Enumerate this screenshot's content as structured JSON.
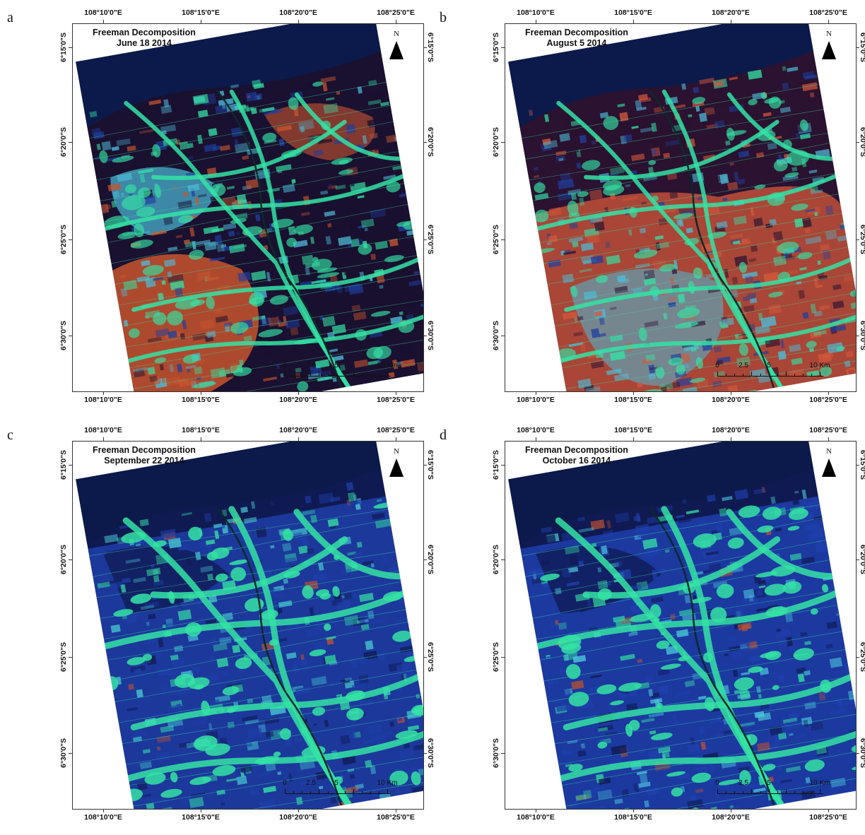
{
  "panels": [
    {
      "letter": "a",
      "title": "Freeman Decomposition",
      "date": "June  18  2014",
      "palette": {
        "water": "#0b1a4a",
        "dark": "#1a1030",
        "blue": "#1e3f9e",
        "green": "#34e3a4",
        "orange": "#c8552e",
        "cyan": "#4dbcd8"
      }
    },
    {
      "letter": "b",
      "title": "Freeman Decomposition",
      "date": "August 5  2014",
      "palette": {
        "water": "#0b1a4a",
        "dark": "#2a1230",
        "blue": "#1e3f9e",
        "green": "#34e3a4",
        "orange": "#d4583a",
        "cyan": "#4dbcd8"
      }
    },
    {
      "letter": "c",
      "title": "Freeman Decomposition",
      "date": "September 22  2014",
      "palette": {
        "water": "#0b1a4a",
        "dark": "#0f1a52",
        "blue": "#1e3ea8",
        "green": "#34e3a4",
        "orange": "#c8552e",
        "cyan": "#46c6d0"
      }
    },
    {
      "letter": "d",
      "title": "Freeman Decomposition",
      "date": "October 16  2014",
      "palette": {
        "water": "#0b1a4a",
        "dark": "#0f1a52",
        "blue": "#1f40ae",
        "green": "#34e3a4",
        "orange": "#b85030",
        "cyan": "#4cc8dc"
      }
    }
  ],
  "longitude_labels": [
    "108°10'0\"E",
    "108°15'0\"E",
    "108°20'0\"E",
    "108°25'0\"E"
  ],
  "latitude_labels": [
    "6°15'0\"S",
    "6°20'0\"S",
    "6°25'0\"S",
    "6°30'0\"S"
  ],
  "north_label": "N",
  "north_icon": "north-arrow-icon",
  "scale_labels": [
    "0",
    "2.5",
    "5",
    "10 Km"
  ]
}
